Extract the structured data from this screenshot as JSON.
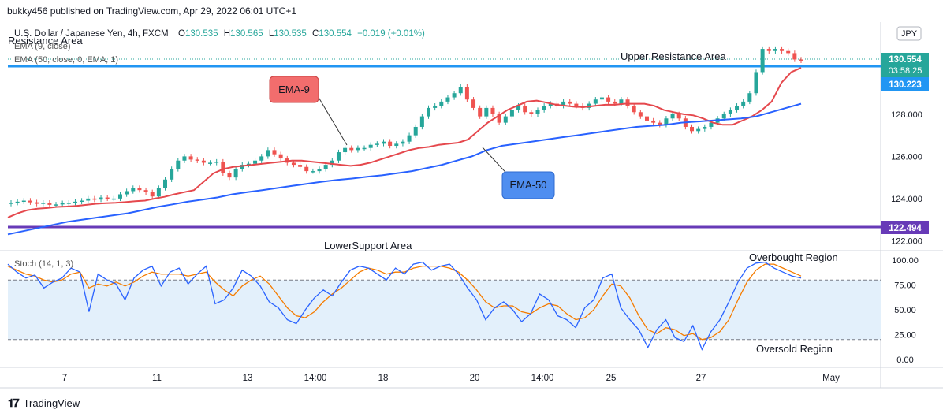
{
  "publisher": "bukky456 published on TradingView.com, Apr 29, 2022 06:01 UTC+1",
  "footer_brand": "TradingView",
  "symbol_line": {
    "title": "U.S. Dollar / Japanese Yen, 4h, FXCM",
    "o_label": "O",
    "o": "130.535",
    "h_label": "H",
    "h": "130.565",
    "l_label": "L",
    "l": "130.535",
    "c_label": "C",
    "c": "130.554",
    "change": "+0.019 (+0.01%)"
  },
  "indicators": {
    "ema9": "EMA (9, close)",
    "ema50": "EMA (50, close, 0, EMA, 1)",
    "stoch": "Stoch (14, 1, 3)"
  },
  "currency_badge": "JPY",
  "annotations": {
    "upper_resistance": "Upper Resistance Area",
    "resistance_partial": "Resistance Area",
    "lower_support": "LowerSupport Area",
    "ema9_callout": "EMA-9",
    "ema50_callout": "EMA-50",
    "overbought": "Overbought Region",
    "oversold": "Oversold Region"
  },
  "price_badges": {
    "last_price": "130.554",
    "countdown": "03:58:25",
    "resistance_price": "130.223",
    "support_price": "122.494"
  },
  "colors": {
    "bull": "#26a69a",
    "bear": "#ef5350",
    "ema9": "#e5484d",
    "ema50": "#2962ff",
    "resistance_line": "#2196f3",
    "support_line": "#673ab7",
    "stoch_k": "#2962ff",
    "stoch_d": "#f57c00",
    "stoch_band": "#e3f0fb",
    "callout_red": "#f26d6d",
    "callout_blue": "#4f8ef0"
  },
  "chart_data": [
    {
      "type": "candlestick",
      "title": "U.S. Dollar / Japanese Yen, 4h, FXCM",
      "x_ticks": [
        "7",
        "11",
        "13",
        "14:00",
        "18",
        "20",
        "14:00",
        "25",
        "27",
        "May"
      ],
      "y_ticks": [
        122.0,
        124.0,
        126.0,
        128.0
      ],
      "y_tick_labels": [
        "122.000",
        "124.000",
        "126.000",
        "128.000"
      ],
      "ylim": [
        121.6,
        132.3
      ],
      "resistance_level": 130.223,
      "support_level": 122.494,
      "grid": false,
      "series": [
        {
          "name": "USDJPY close",
          "type": "candles",
          "values": [
            123.8,
            123.85,
            123.9,
            123.82,
            123.75,
            123.8,
            123.7,
            123.72,
            123.78,
            123.8,
            123.85,
            123.9,
            124.0,
            123.95,
            124.05,
            124.0,
            124.0,
            124.2,
            124.35,
            124.5,
            124.4,
            124.3,
            124.1,
            124.5,
            124.9,
            125.4,
            125.8,
            126.0,
            125.85,
            125.8,
            125.7,
            125.7,
            125.75,
            125.2,
            125.0,
            125.4,
            125.6,
            125.65,
            125.8,
            126.0,
            126.3,
            126.1,
            125.9,
            125.7,
            125.6,
            125.5,
            125.3,
            125.3,
            125.4,
            125.6,
            125.8,
            126.2,
            126.4,
            126.3,
            126.4,
            126.4,
            126.55,
            126.6,
            126.7,
            126.5,
            126.6,
            126.7,
            127.0,
            127.4,
            127.9,
            128.3,
            128.4,
            128.6,
            128.8,
            129.0,
            129.3,
            128.7,
            128.3,
            127.9,
            128.3,
            128.0,
            127.6,
            127.9,
            128.2,
            128.4,
            128.1,
            128.0,
            128.2,
            128.4,
            128.5,
            128.4,
            128.6,
            128.5,
            128.4,
            128.3,
            128.5,
            128.7,
            128.8,
            128.6,
            128.5,
            128.7,
            128.4,
            128.1,
            127.9,
            127.7,
            127.6,
            127.5,
            127.8,
            128.0,
            127.8,
            127.4,
            127.2,
            127.3,
            127.4,
            127.6,
            127.8,
            128.0,
            128.2,
            128.4,
            128.6,
            129.0,
            130.0,
            131.1,
            131.0,
            131.1,
            131.0,
            130.9,
            130.6,
            130.55
          ]
        },
        {
          "name": "EMA (9, close)",
          "type": "line",
          "values": [
            123.1,
            123.3,
            123.45,
            123.52,
            123.55,
            123.6,
            123.62,
            123.65,
            123.7,
            123.75,
            123.78,
            123.8,
            123.83,
            123.87,
            123.9,
            124.0,
            124.08,
            124.2,
            124.3,
            124.4,
            124.8,
            125.2,
            125.4,
            125.5,
            125.55,
            125.6,
            125.65,
            125.7,
            125.75,
            125.8,
            125.8,
            125.75,
            125.7,
            125.65,
            125.6,
            125.55,
            125.6,
            125.7,
            125.85,
            126.0,
            126.15,
            126.3,
            126.4,
            126.45,
            126.55,
            126.6,
            126.65,
            126.8,
            127.2,
            127.6,
            127.9,
            128.2,
            128.4,
            128.6,
            128.65,
            128.55,
            128.45,
            128.4,
            128.35,
            128.35,
            128.4,
            128.45,
            128.45,
            128.5,
            128.5,
            128.5,
            128.4,
            128.2,
            128.1,
            128.0,
            127.95,
            127.8,
            127.6,
            127.5,
            127.5,
            127.7,
            127.9,
            128.2,
            128.6,
            129.5,
            130.0,
            130.2
          ]
        },
        {
          "name": "EMA (50, close, 0, EMA, 1)",
          "type": "line",
          "values": [
            122.3,
            122.45,
            122.6,
            122.75,
            122.9,
            123.0,
            123.1,
            123.2,
            123.3,
            123.45,
            123.6,
            123.72,
            123.85,
            123.95,
            124.05,
            124.2,
            124.3,
            124.4,
            124.5,
            124.6,
            124.7,
            124.8,
            124.88,
            124.95,
            125.03,
            125.1,
            125.2,
            125.3,
            125.45,
            125.6,
            125.8,
            126.0,
            126.3,
            126.5,
            126.6,
            126.7,
            126.8,
            126.9,
            127.0,
            127.1,
            127.2,
            127.3,
            127.4,
            127.45,
            127.5,
            127.6,
            127.65,
            127.7,
            127.75,
            127.8,
            127.9,
            128.1,
            128.3,
            128.5
          ]
        }
      ]
    },
    {
      "type": "line",
      "title": "Stoch (14, 1, 3)",
      "y_ticks": [
        0,
        25,
        50,
        75,
        100
      ],
      "y_tick_labels": [
        "0.00",
        "25.00",
        "50.00",
        "75.00",
        "100.00"
      ],
      "ylim": [
        -8,
        108
      ],
      "overbought_level": 80,
      "oversold_level": 20,
      "series": [
        {
          "name": "%K",
          "values": [
            96,
            88,
            82,
            85,
            72,
            78,
            82,
            92,
            88,
            48,
            86,
            80,
            76,
            60,
            82,
            90,
            94,
            74,
            88,
            92,
            76,
            86,
            94,
            56,
            60,
            72,
            90,
            84,
            74,
            58,
            52,
            40,
            36,
            50,
            62,
            70,
            64,
            78,
            90,
            94,
            92,
            86,
            80,
            92,
            86,
            96,
            98,
            90,
            94,
            96,
            86,
            72,
            60,
            40,
            52,
            58,
            50,
            38,
            46,
            66,
            60,
            44,
            40,
            32,
            52,
            60,
            82,
            86,
            52,
            40,
            30,
            12,
            30,
            40,
            22,
            18,
            34,
            10,
            28,
            40,
            58,
            78,
            92,
            97,
            98,
            92,
            88,
            84,
            82
          ]
        },
        {
          "name": "%D",
          "values": [
            94,
            90,
            86,
            84,
            80,
            78,
            80,
            86,
            88,
            72,
            76,
            74,
            78,
            74,
            78,
            84,
            88,
            86,
            86,
            86,
            84,
            86,
            88,
            78,
            70,
            64,
            74,
            80,
            84,
            76,
            64,
            52,
            44,
            42,
            48,
            58,
            66,
            72,
            80,
            88,
            92,
            90,
            86,
            88,
            88,
            92,
            94,
            94,
            94,
            92,
            88,
            80,
            70,
            58,
            52,
            54,
            54,
            48,
            46,
            52,
            56,
            54,
            46,
            40,
            42,
            50,
            64,
            76,
            74,
            62,
            44,
            30,
            26,
            32,
            30,
            24,
            26,
            20,
            22,
            28,
            40,
            60,
            78,
            90,
            96,
            96,
            92,
            88,
            84
          ]
        }
      ]
    }
  ]
}
